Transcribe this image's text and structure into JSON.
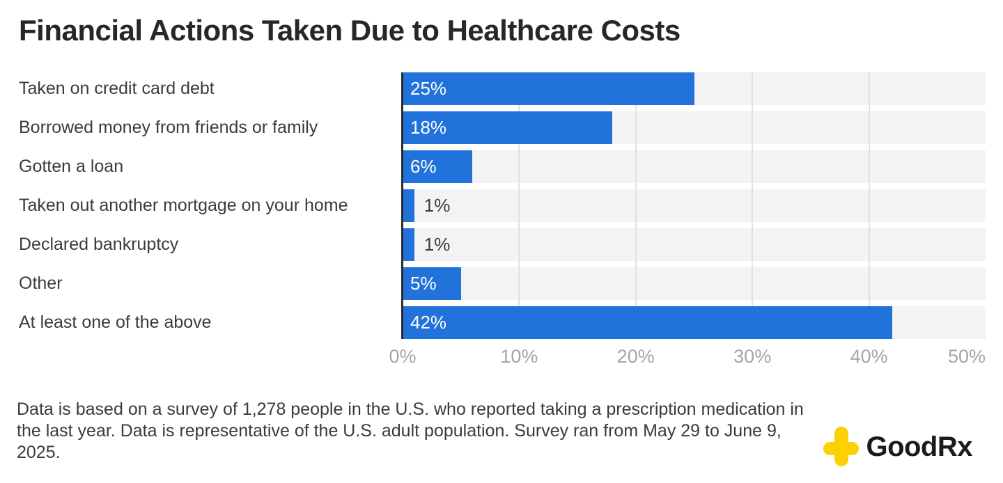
{
  "title": "Financial Actions Taken Due to Healthcare Costs",
  "chart_data": {
    "type": "bar",
    "orientation": "horizontal",
    "title": "Financial Actions Taken Due to Healthcare Costs",
    "categories": [
      "Taken on credit card debt",
      "Borrowed money from friends or family",
      "Gotten a loan",
      "Taken out another mortgage on your home",
      "Declared bankruptcy",
      "Other",
      "At least one of the above"
    ],
    "values": [
      25,
      18,
      6,
      1,
      1,
      5,
      42
    ],
    "value_labels": [
      "25%",
      "18%",
      "6%",
      "1%",
      "1%",
      "5%",
      "42%"
    ],
    "xlabel": "",
    "ylabel": "",
    "xlim": [
      0,
      50
    ],
    "tick_labels": [
      "0%",
      "10%",
      "20%",
      "30%",
      "40%",
      "50%"
    ],
    "grid": true,
    "legend": false,
    "bar_color": "#2272dc",
    "track_color": "#f3f3f3"
  },
  "footer": {
    "note": "Data is based on a survey of 1,278 people in the U.S. who reported taking a prescription medication in the last year. Data is representative of the U.S. adult population. Survey ran from May 29 to June 9, 2025."
  },
  "logo": {
    "text": "GoodRx",
    "cross_color": "#fbd104"
  }
}
